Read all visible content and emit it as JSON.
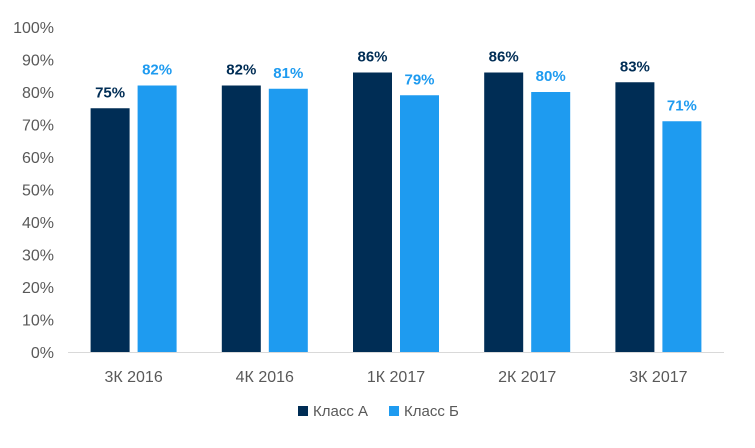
{
  "chart_data": {
    "type": "bar",
    "categories": [
      "3К 2016",
      "4К 2016",
      "1К 2017",
      "2К 2017",
      "3К 2017"
    ],
    "series": [
      {
        "name": "Класс А",
        "values": [
          75,
          82,
          86,
          86,
          83
        ],
        "labels": [
          "75%",
          "82%",
          "86%",
          "86%",
          "83%"
        ],
        "color": "#002D55"
      },
      {
        "name": "Класс Б",
        "values": [
          82,
          81,
          79,
          80,
          71
        ],
        "labels": [
          "82%",
          "81%",
          "79%",
          "80%",
          "71%"
        ],
        "color": "#1E9BF0"
      }
    ],
    "ylim": [
      0,
      100
    ],
    "yticks": [
      0,
      10,
      20,
      30,
      40,
      50,
      60,
      70,
      80,
      90,
      100
    ],
    "ytick_labels": [
      "0%",
      "10%",
      "20%",
      "30%",
      "40%",
      "50%",
      "60%",
      "70%",
      "80%",
      "90%",
      "100%"
    ],
    "title": "",
    "xlabel": "",
    "ylabel": "",
    "grid": false,
    "legend_position": "bottom",
    "axis_color": "#D9D9D9",
    "text_color": "#595959"
  }
}
